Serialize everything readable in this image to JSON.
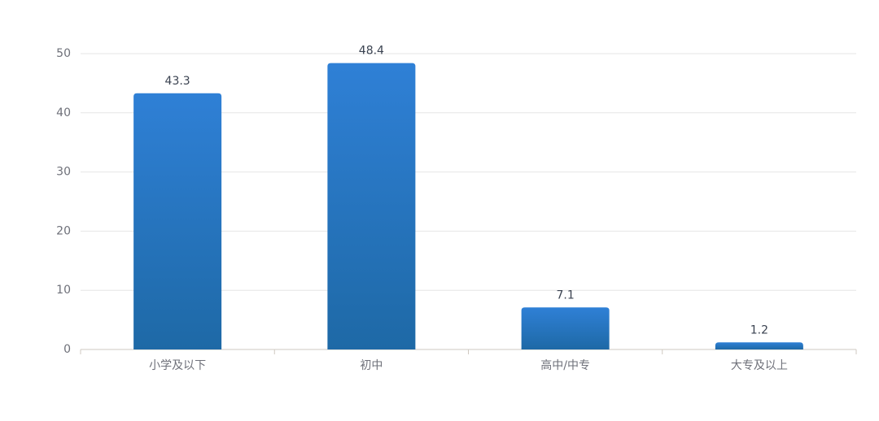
{
  "chart_data": {
    "type": "bar",
    "categories": [
      "小学及以下",
      "初中",
      "高中/中专",
      "大专及以上"
    ],
    "values": [
      43.3,
      48.4,
      7.1,
      1.2
    ],
    "color": [
      "#2f80d6",
      "#1e69a6"
    ],
    "ylim": [
      0,
      50
    ],
    "yticks": [
      0,
      10,
      20,
      30,
      40,
      50
    ],
    "grid": true
  }
}
